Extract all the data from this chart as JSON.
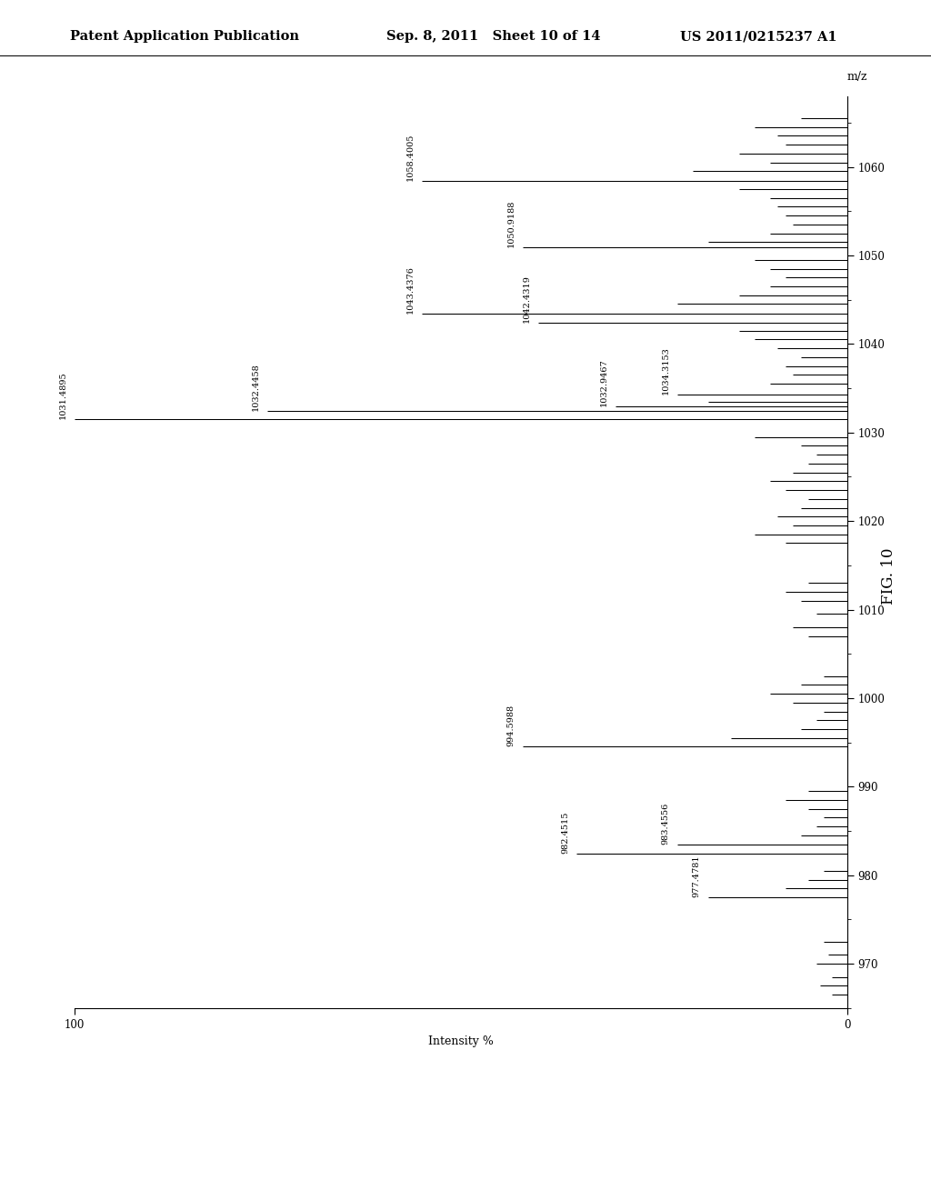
{
  "header_left": "Patent Application Publication",
  "header_mid": "Sep. 8, 2011   Sheet 10 of 14",
  "header_right": "US 2011/0215237 A1",
  "fig_label": "FIG. 10",
  "xlabel_mz": "m/z",
  "ylabel_int": "Intensity %",
  "mz_min": 965,
  "mz_max": 1068,
  "int_min": 0,
  "int_max": 100,
  "mz_ticks": [
    970,
    980,
    990,
    1000,
    1010,
    1020,
    1030,
    1040,
    1050,
    1060
  ],
  "peaks": [
    {
      "mz": 966.5,
      "intensity": 2.0,
      "label": null
    },
    {
      "mz": 967.5,
      "intensity": 3.5,
      "label": null
    },
    {
      "mz": 968.5,
      "intensity": 2.0,
      "label": null
    },
    {
      "mz": 970.0,
      "intensity": 4.0,
      "label": null
    },
    {
      "mz": 971.0,
      "intensity": 2.5,
      "label": null
    },
    {
      "mz": 972.5,
      "intensity": 3.0,
      "label": null
    },
    {
      "mz": 977.4781,
      "intensity": 18.0,
      "label": "977.4781"
    },
    {
      "mz": 978.5,
      "intensity": 8.0,
      "label": null
    },
    {
      "mz": 979.5,
      "intensity": 5.0,
      "label": null
    },
    {
      "mz": 980.5,
      "intensity": 3.0,
      "label": null
    },
    {
      "mz": 982.4515,
      "intensity": 35.0,
      "label": "982.4515"
    },
    {
      "mz": 983.4556,
      "intensity": 22.0,
      "label": "983.4556"
    },
    {
      "mz": 984.5,
      "intensity": 6.0,
      "label": null
    },
    {
      "mz": 985.5,
      "intensity": 4.0,
      "label": null
    },
    {
      "mz": 986.5,
      "intensity": 3.0,
      "label": null
    },
    {
      "mz": 987.5,
      "intensity": 5.0,
      "label": null
    },
    {
      "mz": 988.5,
      "intensity": 8.0,
      "label": null
    },
    {
      "mz": 989.5,
      "intensity": 5.0,
      "label": null
    },
    {
      "mz": 994.5988,
      "intensity": 42.0,
      "label": "994.5988"
    },
    {
      "mz": 995.5,
      "intensity": 15.0,
      "label": null
    },
    {
      "mz": 996.5,
      "intensity": 6.0,
      "label": null
    },
    {
      "mz": 997.5,
      "intensity": 4.0,
      "label": null
    },
    {
      "mz": 998.5,
      "intensity": 3.0,
      "label": null
    },
    {
      "mz": 999.5,
      "intensity": 7.0,
      "label": null
    },
    {
      "mz": 1000.5,
      "intensity": 10.0,
      "label": null
    },
    {
      "mz": 1001.5,
      "intensity": 6.0,
      "label": null
    },
    {
      "mz": 1002.5,
      "intensity": 3.0,
      "label": null
    },
    {
      "mz": 1007.0,
      "intensity": 5.0,
      "label": null
    },
    {
      "mz": 1008.0,
      "intensity": 7.0,
      "label": null
    },
    {
      "mz": 1009.5,
      "intensity": 4.0,
      "label": null
    },
    {
      "mz": 1011.0,
      "intensity": 6.0,
      "label": null
    },
    {
      "mz": 1012.0,
      "intensity": 8.0,
      "label": null
    },
    {
      "mz": 1013.0,
      "intensity": 5.0,
      "label": null
    },
    {
      "mz": 1017.5,
      "intensity": 8.0,
      "label": null
    },
    {
      "mz": 1018.5,
      "intensity": 12.0,
      "label": null
    },
    {
      "mz": 1019.5,
      "intensity": 7.0,
      "label": null
    },
    {
      "mz": 1020.5,
      "intensity": 9.0,
      "label": null
    },
    {
      "mz": 1021.5,
      "intensity": 6.0,
      "label": null
    },
    {
      "mz": 1022.5,
      "intensity": 5.0,
      "label": null
    },
    {
      "mz": 1023.5,
      "intensity": 8.0,
      "label": null
    },
    {
      "mz": 1024.5,
      "intensity": 10.0,
      "label": null
    },
    {
      "mz": 1025.5,
      "intensity": 7.0,
      "label": null
    },
    {
      "mz": 1026.5,
      "intensity": 5.0,
      "label": null
    },
    {
      "mz": 1027.5,
      "intensity": 4.0,
      "label": null
    },
    {
      "mz": 1028.5,
      "intensity": 6.0,
      "label": null
    },
    {
      "mz": 1029.5,
      "intensity": 12.0,
      "label": null
    },
    {
      "mz": 1031.4895,
      "intensity": 100.0,
      "label": "1031.4895"
    },
    {
      "mz": 1032.4458,
      "intensity": 75.0,
      "label": "1032.4458"
    },
    {
      "mz": 1032.9467,
      "intensity": 30.0,
      "label": "1032.9467"
    },
    {
      "mz": 1033.5,
      "intensity": 18.0,
      "label": null
    },
    {
      "mz": 1034.3153,
      "intensity": 22.0,
      "label": "1034.3153"
    },
    {
      "mz": 1035.5,
      "intensity": 10.0,
      "label": null
    },
    {
      "mz": 1036.5,
      "intensity": 7.0,
      "label": null
    },
    {
      "mz": 1037.5,
      "intensity": 8.0,
      "label": null
    },
    {
      "mz": 1038.5,
      "intensity": 6.0,
      "label": null
    },
    {
      "mz": 1039.5,
      "intensity": 9.0,
      "label": null
    },
    {
      "mz": 1040.5,
      "intensity": 12.0,
      "label": null
    },
    {
      "mz": 1041.5,
      "intensity": 14.0,
      "label": null
    },
    {
      "mz": 1042.4319,
      "intensity": 40.0,
      "label": "1042.4319"
    },
    {
      "mz": 1043.4376,
      "intensity": 55.0,
      "label": "1043.4376"
    },
    {
      "mz": 1044.5,
      "intensity": 22.0,
      "label": null
    },
    {
      "mz": 1045.5,
      "intensity": 14.0,
      "label": null
    },
    {
      "mz": 1046.5,
      "intensity": 10.0,
      "label": null
    },
    {
      "mz": 1047.5,
      "intensity": 8.0,
      "label": null
    },
    {
      "mz": 1048.5,
      "intensity": 10.0,
      "label": null
    },
    {
      "mz": 1049.5,
      "intensity": 12.0,
      "label": null
    },
    {
      "mz": 1050.9188,
      "intensity": 42.0,
      "label": "1050.9188"
    },
    {
      "mz": 1051.5,
      "intensity": 18.0,
      "label": null
    },
    {
      "mz": 1052.5,
      "intensity": 10.0,
      "label": null
    },
    {
      "mz": 1053.5,
      "intensity": 7.0,
      "label": null
    },
    {
      "mz": 1054.5,
      "intensity": 8.0,
      "label": null
    },
    {
      "mz": 1055.5,
      "intensity": 9.0,
      "label": null
    },
    {
      "mz": 1056.5,
      "intensity": 10.0,
      "label": null
    },
    {
      "mz": 1057.5,
      "intensity": 14.0,
      "label": null
    },
    {
      "mz": 1058.4005,
      "intensity": 55.0,
      "label": "1058.4005"
    },
    {
      "mz": 1059.5,
      "intensity": 20.0,
      "label": null
    },
    {
      "mz": 1060.5,
      "intensity": 10.0,
      "label": null
    },
    {
      "mz": 1061.5,
      "intensity": 14.0,
      "label": null
    },
    {
      "mz": 1062.5,
      "intensity": 8.0,
      "label": null
    },
    {
      "mz": 1063.5,
      "intensity": 9.0,
      "label": null
    },
    {
      "mz": 1064.5,
      "intensity": 12.0,
      "label": null
    },
    {
      "mz": 1065.5,
      "intensity": 6.0,
      "label": null
    }
  ],
  "background_color": "#ffffff",
  "bar_color": "#000000",
  "font_size_header": 10.5,
  "font_size_axis_label": 9,
  "font_size_tick": 8.5,
  "font_size_peak_label": 7,
  "font_size_fig_label": 12
}
